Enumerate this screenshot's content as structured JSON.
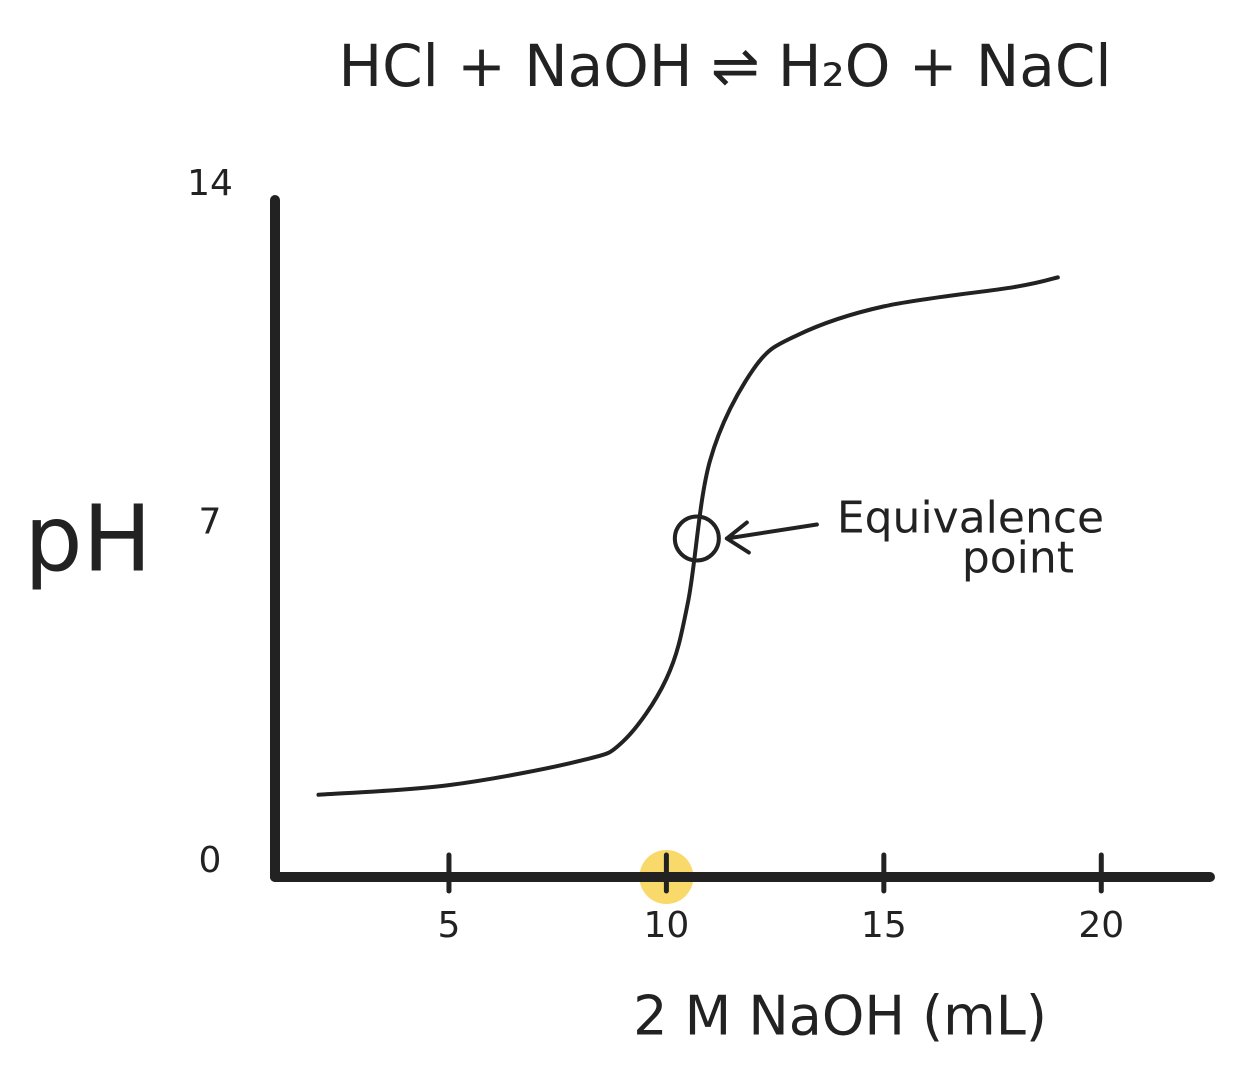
{
  "chart_data": {
    "type": "line",
    "title": "HCl + NaOH ⇌ H₂O + NaCl",
    "x_label": "2 M NaOH (mL)",
    "y_label": "pH",
    "x": [
      2,
      5,
      8,
      9,
      10,
      10.5,
      11,
      12,
      13,
      15,
      18,
      19
    ],
    "series": [
      {
        "name": "pH",
        "color": "#222222",
        "values": [
          1.7,
          1.9,
          2.4,
          2.8,
          4.1,
          5.7,
          8.6,
          10.5,
          11.2,
          11.8,
          12.2,
          12.4
        ]
      }
    ],
    "xlim": [
      1,
      22.5
    ],
    "xticks": [
      5,
      10,
      15,
      20
    ],
    "ylim": [
      0,
      14
    ],
    "yticks": [
      0,
      7,
      14
    ],
    "grid": false,
    "highlight": {
      "x": 10,
      "color": "#f9d96a"
    },
    "annotation": {
      "lines": [
        "Equivalence",
        "point"
      ],
      "x": 10.7,
      "y": 7
    }
  }
}
